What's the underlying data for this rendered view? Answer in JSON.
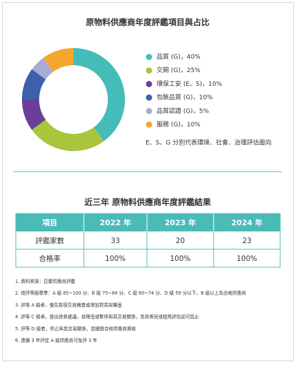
{
  "chart_data": {
    "type": "donut",
    "title": "原物料供應商年度評鑑項目與占比",
    "categories": [
      "品質 (G)，40%",
      "交期 (G)，25%",
      "環保工安 (E、S)，10%",
      "包裝品質 (G)，10%",
      "品質認證 (G)，5%",
      "服務 (G)，10%"
    ],
    "values": [
      40,
      25,
      10,
      10,
      5,
      10
    ],
    "colors": [
      "#45bcb8",
      "#a9c53c",
      "#6b3f98",
      "#3e5fae",
      "#a9acd1",
      "#f6a62a"
    ],
    "note": "E、S、G 分別代表環境、社會、治理評估面向"
  },
  "table": {
    "title": "近三年 原物料供應商年度評鑑結果",
    "header": [
      "項目",
      "2022 年",
      "2023 年",
      "2024 年"
    ],
    "rows": [
      [
        "評鑑家數",
        "33",
        "20",
        "23"
      ],
      [
        "合格率",
        "100%",
        "100%",
        "100%"
      ]
    ]
  },
  "notes": [
    "1. 資料來源：亞聚供應商評鑑",
    "2. 總評等級標準：A 級 85~100 分、B 級 75~84 分、C 級 60~74 分、D 級 59 分以下，B 級以上為合格供應商",
    "3. 評等 A 級者，優先取得交易機會或增加對其採購量",
    "4. 評等 C 級者，提出改善建議，並降低或暫停與其交易關係，至改善完成經再評估認可爲止",
    "5. 評等 D 級者，停止與其交易關係，並撤銷合格供應商資格",
    "6. 連續 3 年評定 A 級供應商可免評 3 年"
  ]
}
